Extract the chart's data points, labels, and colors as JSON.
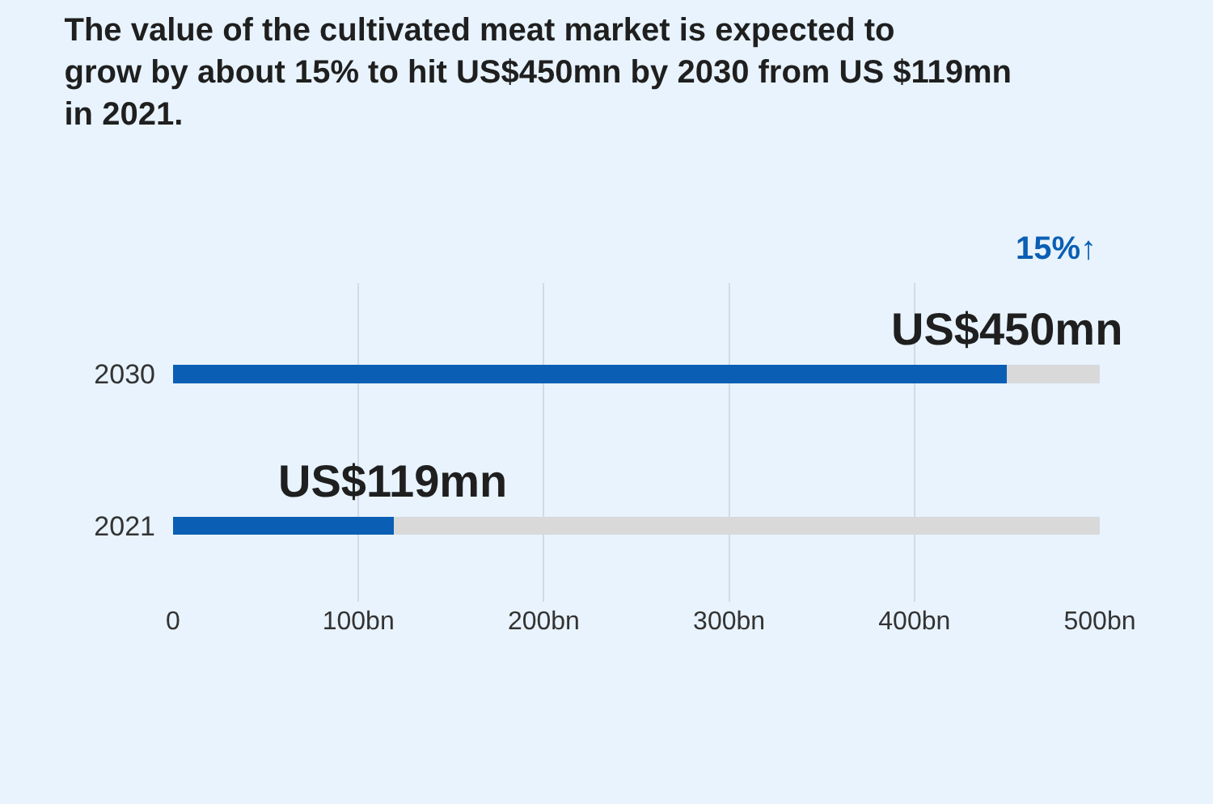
{
  "chart_data": {
    "type": "bar",
    "orientation": "horizontal",
    "title": "The value of the cultivated meat market is expected to grow by about 15% to hit US$450mn by 2030 from US $119mn in 2021.",
    "categories": [
      "2030",
      "2021"
    ],
    "series": [
      {
        "color": "#0a5fb4",
        "values": [
          450,
          119
        ],
        "value_labels": [
          "US$450mn",
          "US$119mn"
        ]
      },
      {
        "color": "#d9d9d9",
        "values": [
          50,
          381
        ]
      }
    ],
    "stacked": true,
    "annotations": [
      "15%↑"
    ],
    "xlim": [
      0,
      500
    ],
    "xticks": [
      0,
      {
        "value": 100,
        "label": "100bn"
      },
      {
        "value": 200,
        "label": "200bn"
      },
      {
        "value": 300,
        "label": "300bn"
      },
      {
        "value": 400,
        "label": "400bn"
      },
      {
        "value": 500,
        "label": "500bn"
      }
    ],
    "grid": "x"
  }
}
